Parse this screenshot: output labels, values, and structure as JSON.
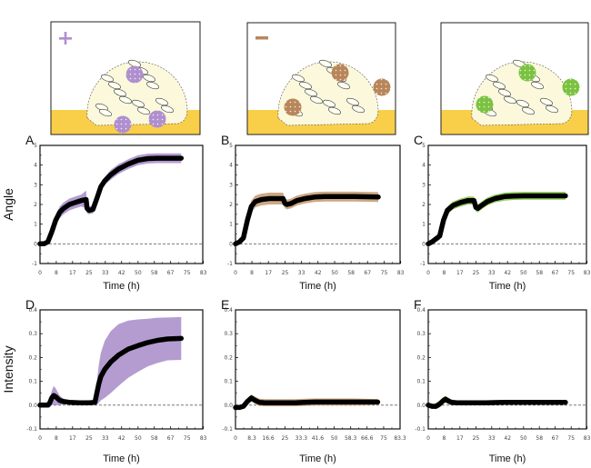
{
  "figure": {
    "illustrations": [
      {
        "id": "purple",
        "symbol": "+",
        "symbol_name": "plus-icon",
        "color": "#b08fce"
      },
      {
        "id": "brown",
        "symbol": "−",
        "symbol_name": "minus-icon",
        "color": "#b8865a"
      },
      {
        "id": "green",
        "symbol": "",
        "symbol_name": "",
        "color": "#7cc242"
      }
    ],
    "substrate_color": "#f9cf4a",
    "biofilm_color": "#fbf8dc"
  },
  "chart_data": [
    {
      "panel": "A",
      "type": "line",
      "title": "",
      "xlabel": "Time (h)",
      "ylabel": "Angle",
      "xlim": [
        0,
        83
      ],
      "ylim": [
        -1,
        5
      ],
      "xticks": [
        "0",
        "8",
        "17",
        "25",
        "33",
        "42",
        "50",
        "58",
        "67",
        "75",
        "83"
      ],
      "xtick_values": [
        0,
        8.3,
        16.6,
        25,
        33.3,
        41.6,
        50,
        58.3,
        66.6,
        75,
        83.3
      ],
      "yticks": [
        "-1",
        "0",
        "1",
        "2",
        "3",
        "4",
        "5"
      ],
      "band_color": "#a78bc9",
      "line_color": "#000000",
      "reference_line": 0,
      "series": [
        {
          "name": "mean",
          "x": [
            0,
            2,
            4,
            6,
            8,
            10,
            12,
            15,
            18,
            21,
            23.5,
            24,
            25,
            27,
            29,
            31,
            33,
            36,
            40,
            45,
            50,
            55,
            60,
            65,
            72
          ],
          "y": [
            0,
            0,
            0.1,
            0.6,
            1.2,
            1.6,
            1.8,
            2.0,
            2.1,
            2.2,
            2.25,
            1.8,
            1.7,
            1.75,
            2.3,
            2.9,
            3.2,
            3.5,
            3.8,
            4.05,
            4.25,
            4.33,
            4.35,
            4.35,
            4.35
          ],
          "band": [
            0.1,
            0.1,
            0.15,
            0.2,
            0.25,
            0.3,
            0.3,
            0.3,
            0.3,
            0.3,
            0.45,
            0.25,
            0.2,
            0.2,
            0.2,
            0.2,
            0.2,
            0.25,
            0.25,
            0.25,
            0.25,
            0.25,
            0.25,
            0.25,
            0.25
          ]
        }
      ]
    },
    {
      "panel": "B",
      "type": "line",
      "title": "",
      "xlabel": "Time (h)",
      "ylabel": "",
      "xlim": [
        0,
        83
      ],
      "ylim": [
        -1,
        5
      ],
      "xticks": [
        "0",
        "8",
        "17",
        "25",
        "33",
        "42",
        "50",
        "58",
        "67",
        "75",
        "83"
      ],
      "xtick_values": [
        0,
        8.3,
        16.6,
        25,
        33.3,
        41.6,
        50,
        58.3,
        66.6,
        75,
        83.3
      ],
      "yticks": [
        "-1",
        "0",
        "1",
        "2",
        "3",
        "4",
        "5"
      ],
      "band_color": "#c49a6c",
      "line_color": "#000000",
      "reference_line": 0,
      "series": [
        {
          "name": "mean",
          "x": [
            0,
            2,
            4,
            6,
            8,
            10,
            13,
            17,
            21,
            24,
            25,
            26,
            28,
            31,
            35,
            40,
            45,
            50,
            60,
            72
          ],
          "y": [
            0,
            0.1,
            0.3,
            1.2,
            1.9,
            2.15,
            2.25,
            2.3,
            2.3,
            2.3,
            2.05,
            2.0,
            2.05,
            2.2,
            2.3,
            2.38,
            2.4,
            2.4,
            2.4,
            2.38
          ],
          "band": [
            0.1,
            0.1,
            0.15,
            0.25,
            0.3,
            0.3,
            0.3,
            0.3,
            0.3,
            0.3,
            0.25,
            0.25,
            0.25,
            0.25,
            0.25,
            0.25,
            0.25,
            0.25,
            0.25,
            0.25
          ]
        }
      ]
    },
    {
      "panel": "C",
      "type": "line",
      "title": "",
      "xlabel": "Time (h)",
      "ylabel": "",
      "xlim": [
        0,
        83
      ],
      "ylim": [
        -1,
        5
      ],
      "xticks": [
        "0",
        "8",
        "17",
        "25",
        "33",
        "42",
        "50",
        "58",
        "67",
        "75",
        "83"
      ],
      "xtick_values": [
        0,
        8.3,
        16.6,
        25,
        33.3,
        41.6,
        50,
        58.3,
        66.6,
        75,
        83.3
      ],
      "yticks": [
        "-1",
        "0",
        "1",
        "2",
        "3",
        "4",
        "5"
      ],
      "band_color": "#7cc242",
      "line_color": "#000000",
      "reference_line": 0,
      "series": [
        {
          "name": "mean",
          "x": [
            0,
            2,
            4,
            6,
            8,
            10,
            13,
            17,
            21,
            24,
            25,
            26,
            28,
            31,
            35,
            40,
            45,
            50,
            60,
            72
          ],
          "y": [
            0,
            0.1,
            0.25,
            0.4,
            1.2,
            1.7,
            1.95,
            2.1,
            2.2,
            2.2,
            1.85,
            1.8,
            1.95,
            2.15,
            2.3,
            2.4,
            2.43,
            2.44,
            2.44,
            2.44
          ],
          "band": [
            0.15,
            0.15,
            0.15,
            0.2,
            0.2,
            0.2,
            0.2,
            0.2,
            0.2,
            0.2,
            0.2,
            0.2,
            0.2,
            0.2,
            0.2,
            0.2,
            0.2,
            0.2,
            0.2,
            0.2
          ]
        }
      ]
    },
    {
      "panel": "D",
      "type": "line",
      "title": "",
      "xlabel": "Time (h)",
      "ylabel": "Intensity",
      "xlim": [
        0,
        83
      ],
      "ylim": [
        -0.1,
        0.4
      ],
      "xticks": [
        "0",
        "8",
        "17",
        "25",
        "33",
        "42",
        "50",
        "58",
        "67",
        "75",
        "83"
      ],
      "xtick_values": [
        0,
        8.3,
        16.6,
        25,
        33.3,
        41.6,
        50,
        58.3,
        66.6,
        75,
        83.3
      ],
      "yticks": [
        "-0.1",
        "0.0",
        "0.1",
        "0.2",
        "0.3",
        "0.4"
      ],
      "band_color": "#a78bc9",
      "line_color": "#000000",
      "reference_line": 0,
      "series": [
        {
          "name": "mean",
          "x": [
            0,
            2,
            4,
            5,
            6,
            7,
            8,
            10,
            12,
            15,
            20,
            25,
            28,
            29,
            30,
            31,
            33,
            36,
            40,
            45,
            50,
            55,
            60,
            65,
            72
          ],
          "y": [
            0,
            0,
            0,
            0.01,
            0.03,
            0.04,
            0.035,
            0.02,
            0.015,
            0.012,
            0.01,
            0.01,
            0.012,
            0.05,
            0.09,
            0.12,
            0.15,
            0.18,
            0.21,
            0.235,
            0.25,
            0.263,
            0.272,
            0.278,
            0.28
          ],
          "band": [
            0.005,
            0.005,
            0.01,
            0.02,
            0.03,
            0.04,
            0.035,
            0.02,
            0.012,
            0.008,
            0.005,
            0.005,
            0.01,
            0.05,
            0.08,
            0.1,
            0.12,
            0.13,
            0.13,
            0.12,
            0.11,
            0.1,
            0.095,
            0.09,
            0.09
          ]
        }
      ]
    },
    {
      "panel": "E",
      "type": "line",
      "title": "",
      "xlabel": "Time (h)",
      "ylabel": "",
      "xlim": [
        0,
        83.3
      ],
      "ylim": [
        -0.1,
        0.4
      ],
      "xticks": [
        "0",
        "8.3",
        "16.6",
        "25",
        "33.3",
        "41.6",
        "50",
        "58.3",
        "66.6",
        "75",
        "83.3"
      ],
      "xtick_values": [
        0,
        8.3,
        16.6,
        25,
        33.3,
        41.6,
        50,
        58.3,
        66.6,
        75,
        83.3
      ],
      "yticks": [
        "-0.1",
        "0.0",
        "0.1",
        "0.2",
        "0.3",
        "0.4"
      ],
      "band_color": "#c49a6c",
      "line_color": "#000000",
      "reference_line": 0,
      "series": [
        {
          "name": "mean",
          "x": [
            0,
            2,
            4,
            6,
            8,
            10,
            12,
            15,
            20,
            25,
            30,
            35,
            40,
            50,
            60,
            72
          ],
          "y": [
            -0.01,
            -0.01,
            -0.005,
            0.015,
            0.03,
            0.02,
            0.012,
            0.01,
            0.01,
            0.01,
            0.01,
            0.012,
            0.013,
            0.013,
            0.013,
            0.013
          ],
          "band": [
            0.008,
            0.008,
            0.01,
            0.012,
            0.015,
            0.015,
            0.015,
            0.015,
            0.015,
            0.015,
            0.015,
            0.015,
            0.015,
            0.015,
            0.015,
            0.012
          ]
        }
      ]
    },
    {
      "panel": "F",
      "type": "line",
      "title": "",
      "xlabel": "Time (h)",
      "ylabel": "",
      "xlim": [
        0,
        83
      ],
      "ylim": [
        -0.1,
        0.4
      ],
      "xticks": [
        "0",
        "8",
        "17",
        "25",
        "33",
        "42",
        "50",
        "58",
        "67",
        "75",
        "83"
      ],
      "xtick_values": [
        0,
        8.3,
        16.6,
        25,
        33.3,
        41.6,
        50,
        58.3,
        66.6,
        75,
        83.3
      ],
      "yticks": [
        "-0.1",
        "0.0",
        "0.1",
        "0.2",
        "0.3",
        "0.4"
      ],
      "band_color": "#7cc242",
      "line_color": "#000000",
      "reference_line": 0,
      "series": [
        {
          "name": "mean",
          "x": [
            0,
            2,
            4,
            6,
            8,
            9,
            10,
            12,
            15,
            20,
            25,
            30,
            40,
            50,
            60,
            72
          ],
          "y": [
            0,
            -0.005,
            -0.005,
            0.005,
            0.02,
            0.025,
            0.02,
            0.012,
            0.01,
            0.01,
            0.01,
            0.01,
            0.012,
            0.012,
            0.012,
            0.012
          ],
          "band": [
            0.008,
            0.01,
            0.012,
            0.014,
            0.014,
            0.014,
            0.014,
            0.012,
            0.01,
            0.01,
            0.01,
            0.01,
            0.01,
            0.01,
            0.01,
            0.01
          ]
        }
      ]
    }
  ]
}
